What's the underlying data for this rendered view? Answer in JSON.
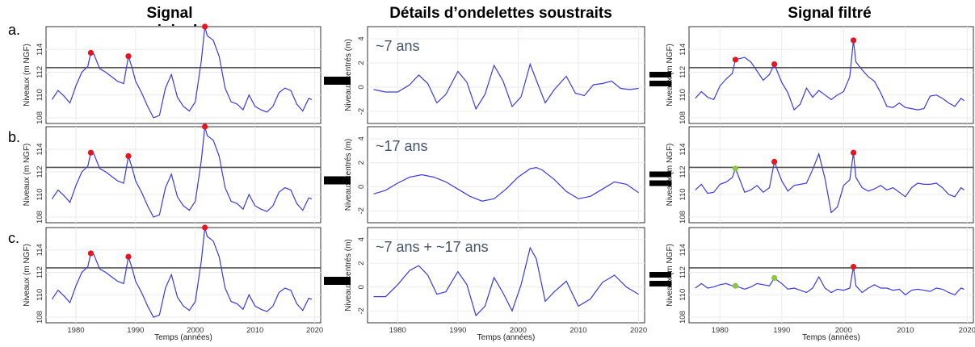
{
  "column_titles": [
    "Signal original",
    "Détails d’ondelettes soustraits",
    "Signal filtré"
  ],
  "row_labels": [
    "a.",
    "b.",
    "c."
  ],
  "chart_data": {
    "type": "line",
    "xlabel": "Temps (années)",
    "xlim": [
      1975,
      2021
    ],
    "x_ticks": [
      1980,
      1990,
      2000,
      2010,
      2020
    ],
    "colors": {
      "series": "#3a3ae6",
      "threshold": "#555555",
      "peak_above": "#e8141e",
      "peak_below": "#8dc63f"
    },
    "original": {
      "ylabel": "Niveaux (m NGF)",
      "ylim": [
        107.5,
        116
      ],
      "y_ticks": [
        108,
        110,
        112,
        114
      ],
      "threshold": 112.4,
      "x": [
        1976,
        1977,
        1978,
        1979,
        1980,
        1981,
        1982,
        1982.5,
        1983,
        1984,
        1985,
        1986,
        1987,
        1988,
        1988.8,
        1989.5,
        1990,
        1991,
        1992,
        1993,
        1994,
        1995,
        1996,
        1997,
        1998,
        1999,
        2000,
        2001,
        2001.6,
        2002,
        2003,
        2004,
        2005,
        2006,
        2007,
        2008,
        2009,
        2010,
        2011,
        2012,
        2013,
        2014,
        2015,
        2016,
        2017,
        2018,
        2019,
        2019.5
      ],
      "y": [
        109.6,
        110.4,
        109.9,
        109.3,
        110.8,
        112.0,
        112.5,
        113.7,
        113.6,
        112.3,
        112.0,
        111.6,
        111.2,
        111.0,
        113.4,
        112.2,
        111.2,
        110.2,
        109.0,
        108.0,
        108.2,
        110.6,
        111.8,
        109.8,
        109.0,
        108.6,
        109.4,
        113.0,
        116.0,
        115.2,
        114.8,
        113.4,
        110.6,
        109.4,
        109.2,
        108.7,
        110.0,
        109.0,
        108.7,
        108.5,
        109.0,
        110.2,
        110.6,
        110.4,
        109.2,
        108.6,
        109.7,
        109.6
      ],
      "peaks": [
        {
          "x": 1982.5,
          "y": 113.7
        },
        {
          "x": 1988.8,
          "y": 113.4
        },
        {
          "x": 2001.6,
          "y": 116.0
        }
      ]
    },
    "details": [
      {
        "label": "~7 ans",
        "ylabel": "Niveaux centrés (m)",
        "ylim": [
          -3,
          5
        ],
        "y_ticks": [
          -2,
          0,
          2,
          4
        ],
        "x": [
          1976,
          1978,
          1980,
          1982,
          1983.5,
          1985,
          1986.5,
          1988,
          1990,
          1991.5,
          1993,
          1994.5,
          1996,
          1997.5,
          1999,
          2000.5,
          2002,
          2003,
          2004.5,
          2006,
          2008,
          2009.5,
          2011,
          2012.5,
          2014,
          2015.5,
          2017,
          2018.5,
          2020
        ],
        "y": [
          -0.2,
          -0.4,
          -0.4,
          0.2,
          1.0,
          0.3,
          -1.3,
          -0.6,
          1.3,
          0.4,
          -1.8,
          -0.6,
          1.8,
          0.5,
          -1.6,
          -0.8,
          1.9,
          0.6,
          -1.3,
          -0.2,
          0.9,
          -0.5,
          -0.7,
          0.2,
          0.3,
          0.5,
          -0.1,
          -0.2,
          -0.1
        ]
      },
      {
        "label": "~17 ans",
        "ylabel": "Niveaux centrés (m)",
        "ylim": [
          -3,
          5
        ],
        "y_ticks": [
          -2,
          0,
          2,
          4
        ],
        "x": [
          1976,
          1978,
          1980,
          1982,
          1984,
          1986,
          1988,
          1990,
          1992,
          1994,
          1996,
          1998,
          2000,
          2002,
          2003,
          2004,
          2006,
          2008,
          2010,
          2012,
          2014,
          2016,
          2018,
          2020
        ],
        "y": [
          -0.6,
          -0.3,
          0.3,
          0.8,
          1.0,
          0.8,
          0.4,
          -0.2,
          -0.8,
          -1.2,
          -1.0,
          -0.2,
          0.8,
          1.5,
          1.6,
          1.4,
          0.6,
          -0.4,
          -1.0,
          -0.8,
          -0.2,
          0.4,
          0.2,
          -0.5
        ]
      },
      {
        "label": "~7 ans + ~17 ans",
        "ylabel": "Niveaux centrés (m)",
        "ylim": [
          -3,
          5
        ],
        "y_ticks": [
          -2,
          0,
          2,
          4
        ],
        "x": [
          1976,
          1978,
          1980,
          1982,
          1983.5,
          1985,
          1986.5,
          1988,
          1990,
          1991.5,
          1993,
          1994.5,
          1996,
          1997.5,
          1999,
          2000.5,
          2002,
          2003,
          2004.5,
          2006,
          2008,
          2010,
          2012,
          2014,
          2016,
          2018,
          2020
        ],
        "y": [
          -0.8,
          -0.8,
          0.2,
          1.4,
          1.8,
          1.0,
          -0.6,
          -0.4,
          1.3,
          0.2,
          -2.4,
          -1.6,
          0.8,
          -0.5,
          -2.0,
          0.2,
          3.3,
          2.4,
          -1.2,
          -0.4,
          0.5,
          -1.6,
          -1.0,
          0.4,
          1.0,
          0.0,
          -0.6
        ]
      }
    ],
    "filtered": [
      {
        "ylabel": "Niveaux (m NGF)",
        "ylim": [
          107.5,
          116
        ],
        "y_ticks": [
          108,
          110,
          112,
          114
        ],
        "threshold": 112.4,
        "x": [
          1976,
          1977,
          1978,
          1979,
          1980,
          1981,
          1982,
          1982.5,
          1984,
          1985,
          1986,
          1987,
          1988,
          1988.8,
          1990,
          1991,
          1992,
          1993,
          1994,
          1995,
          1996,
          1997,
          1998,
          1999,
          2000,
          2001,
          2001.6,
          2002,
          2003,
          2004,
          2005,
          2006,
          2007,
          2008,
          2009,
          2010,
          2011,
          2012,
          2013,
          2014,
          2015,
          2016,
          2017,
          2018,
          2019,
          2019.5
        ],
        "y": [
          109.7,
          110.3,
          109.8,
          109.6,
          110.8,
          111.4,
          111.9,
          113.1,
          113.3,
          112.9,
          112.1,
          111.3,
          111.8,
          112.7,
          111.1,
          110.2,
          108.7,
          109.2,
          110.6,
          109.8,
          110.4,
          110.0,
          109.6,
          110.0,
          110.3,
          111.6,
          114.8,
          112.9,
          112.2,
          111.6,
          111.2,
          110.2,
          109.0,
          108.9,
          109.3,
          108.9,
          108.8,
          108.7,
          108.8,
          109.9,
          110.0,
          109.7,
          109.3,
          109.0,
          109.7,
          109.5
        ],
        "peaks": [
          {
            "x": 1982.5,
            "y": 113.1,
            "above": true
          },
          {
            "x": 1988.8,
            "y": 112.7,
            "above": true
          },
          {
            "x": 2001.6,
            "y": 114.8,
            "above": true
          }
        ]
      },
      {
        "ylabel": "Niveaux (m NGF)",
        "ylim": [
          107.5,
          116
        ],
        "y_ticks": [
          108,
          110,
          112,
          114
        ],
        "threshold": 112.4,
        "x": [
          1976,
          1977,
          1978,
          1979,
          1980,
          1981,
          1982,
          1982.5,
          1984,
          1985,
          1986,
          1987,
          1988,
          1988.8,
          1990,
          1991,
          1992,
          1993,
          1994,
          1995,
          1996,
          1997,
          1998,
          1999,
          2000,
          2001,
          2001.6,
          2002,
          2003,
          2004,
          2005,
          2006,
          2007,
          2008,
          2009,
          2010,
          2011,
          2012,
          2013,
          2014,
          2015,
          2016,
          2017,
          2018,
          2019,
          2019.5
        ],
        "y": [
          110.4,
          110.9,
          110.1,
          110.2,
          110.9,
          111.1,
          111.5,
          112.3,
          110.2,
          110.4,
          110.8,
          110.2,
          110.6,
          112.9,
          111.2,
          110.3,
          110.8,
          110.9,
          111.0,
          112.2,
          113.6,
          111.4,
          108.4,
          108.9,
          110.8,
          111.3,
          113.7,
          111.5,
          110.6,
          110.3,
          110.5,
          110.8,
          110.4,
          110.6,
          110.2,
          109.8,
          110.6,
          111.0,
          110.9,
          110.9,
          111.0,
          110.6,
          110.0,
          109.8,
          110.6,
          110.4
        ],
        "peaks": [
          {
            "x": 1982.5,
            "y": 112.3,
            "above": false
          },
          {
            "x": 1988.8,
            "y": 112.9,
            "above": true
          },
          {
            "x": 2001.6,
            "y": 113.7,
            "above": true
          }
        ]
      },
      {
        "ylabel": "Niveaux (m NGF)",
        "ylim": [
          107.5,
          116
        ],
        "y_ticks": [
          108,
          110,
          112,
          114
        ],
        "threshold": 112.4,
        "x": [
          1976,
          1977,
          1978,
          1979,
          1980,
          1981,
          1982,
          1982.5,
          1984,
          1985,
          1986,
          1987,
          1988,
          1988.8,
          1990,
          1991,
          1992,
          1993,
          1994,
          1995,
          1996,
          1997,
          1998,
          1999,
          2000,
          2001,
          2001.6,
          2002,
          2003,
          2004,
          2005,
          2006,
          2007,
          2008,
          2009,
          2010,
          2011,
          2012,
          2013,
          2014,
          2015,
          2016,
          2017,
          2018,
          2019,
          2019.5
        ],
        "y": [
          110.6,
          111.0,
          110.6,
          110.7,
          110.9,
          111.0,
          110.8,
          110.8,
          110.5,
          110.7,
          111.0,
          110.9,
          110.8,
          111.5,
          111.0,
          110.5,
          110.6,
          110.4,
          110.2,
          110.6,
          111.6,
          110.6,
          110.2,
          110.5,
          110.4,
          110.6,
          112.5,
          110.8,
          110.2,
          110.6,
          110.9,
          110.6,
          110.6,
          110.4,
          110.5,
          110.0,
          110.4,
          110.5,
          110.4,
          110.3,
          110.6,
          110.5,
          110.2,
          110.0,
          110.6,
          110.5
        ],
        "peaks": [
          {
            "x": 1982.5,
            "y": 110.8,
            "above": false
          },
          {
            "x": 1988.8,
            "y": 111.5,
            "above": false
          },
          {
            "x": 2001.6,
            "y": 112.5,
            "above": true
          }
        ]
      }
    ]
  }
}
